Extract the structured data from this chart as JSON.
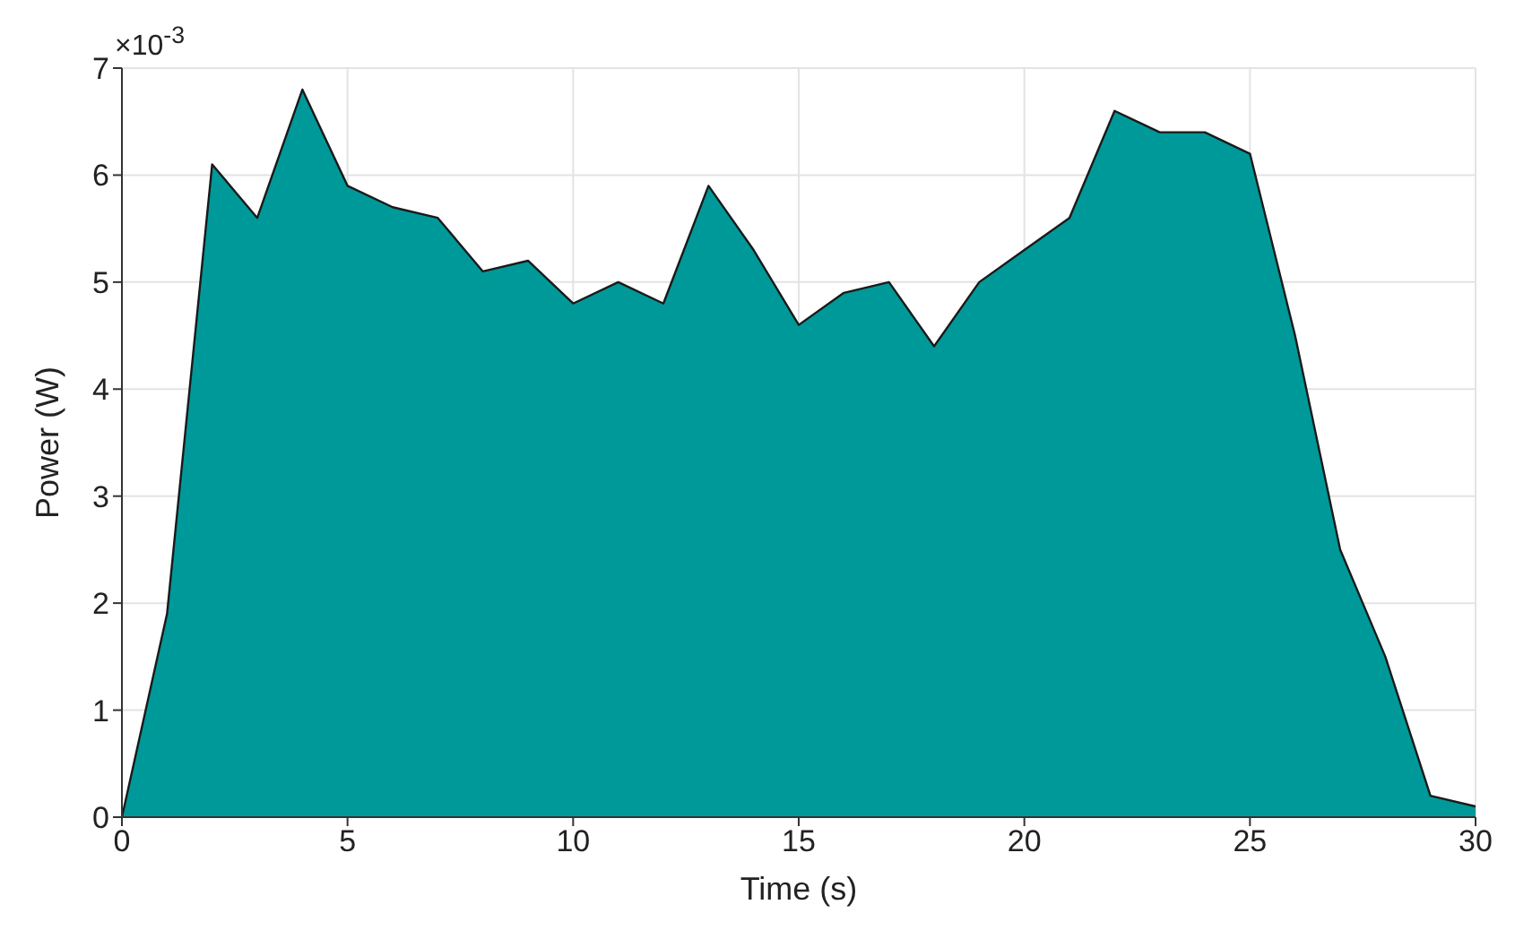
{
  "chart_data": {
    "type": "area",
    "xlabel": "Time (s)",
    "ylabel": "Power (W)",
    "annotations": [
      "×10$^{-3}$"
    ],
    "x": [
      0,
      1,
      2,
      3,
      4,
      5,
      6,
      7,
      8,
      9,
      10,
      11,
      12,
      13,
      14,
      15,
      16,
      17,
      18,
      19,
      20,
      21,
      22,
      23,
      24,
      25,
      26,
      27,
      28,
      29,
      30
    ],
    "values": [
      0,
      1.9,
      6.1,
      5.6,
      6.8,
      5.9,
      5.7,
      5.6,
      5.1,
      5.2,
      4.8,
      5.0,
      4.8,
      5.9,
      5.3,
      4.6,
      4.9,
      5.0,
      4.4,
      5.0,
      5.3,
      5.6,
      6.6,
      6.4,
      6.4,
      6.2,
      4.5,
      2.5,
      1.5,
      0.2,
      0.1
    ],
    "color": "#009999",
    "xlim": [
      0,
      30
    ],
    "xticks": [
      0,
      5,
      10,
      15,
      20,
      25,
      30
    ],
    "ylim": [
      0,
      7
    ],
    "yticks": [
      0,
      1,
      2,
      3,
      4,
      5,
      6,
      7
    ],
    "grid": true
  }
}
